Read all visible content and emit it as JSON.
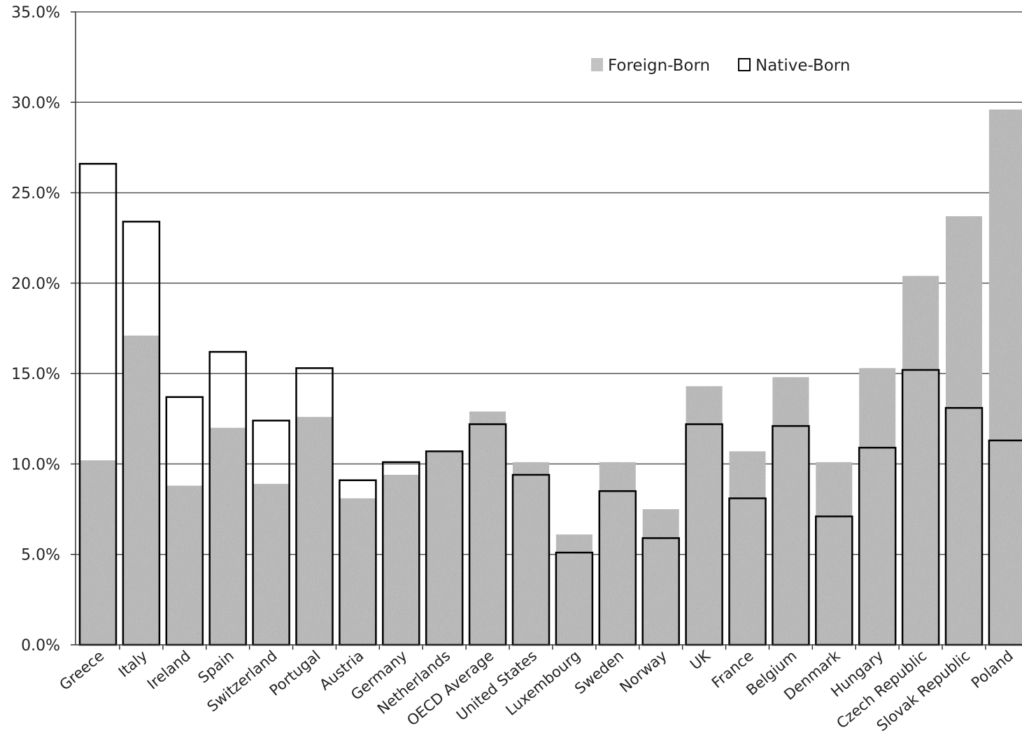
{
  "chart_data": {
    "type": "bar",
    "title": "",
    "xlabel": "",
    "ylabel": "",
    "ylim": [
      0,
      35
    ],
    "yticks": [
      "0.0%",
      "5.0%",
      "10.0%",
      "15.0%",
      "20.0%",
      "25.0%",
      "30.0%",
      "35.0%"
    ],
    "grid": true,
    "legend_position": "top-right",
    "categories": [
      "Greece",
      "Italy",
      "Ireland",
      "Spain",
      "Switzerland",
      "Portugal",
      "Austria",
      "Germany",
      "Netherlands",
      "OECD Average",
      "United States",
      "Luxembourg",
      "Sweden",
      "Norway",
      "UK",
      "France",
      "Belgium",
      "Denmark",
      "Hungary",
      "Czech Republic",
      "Slovak Republic",
      "Poland"
    ],
    "series": [
      {
        "name": "Foreign-Born",
        "style": "shaded",
        "color": "#b8b8b8",
        "values": [
          10.2,
          17.1,
          8.8,
          12.0,
          8.9,
          12.6,
          8.1,
          9.4,
          10.7,
          12.9,
          10.1,
          6.1,
          10.1,
          7.5,
          14.3,
          10.7,
          14.8,
          10.1,
          15.3,
          20.4,
          23.7,
          29.6
        ]
      },
      {
        "name": "Native-Born",
        "style": "outline",
        "color": "#000000",
        "values": [
          26.6,
          23.4,
          13.7,
          16.2,
          12.4,
          15.3,
          9.1,
          10.1,
          10.7,
          12.2,
          9.4,
          5.1,
          8.5,
          5.9,
          12.2,
          8.1,
          12.1,
          7.1,
          10.9,
          15.2,
          13.1,
          11.3
        ]
      }
    ]
  }
}
